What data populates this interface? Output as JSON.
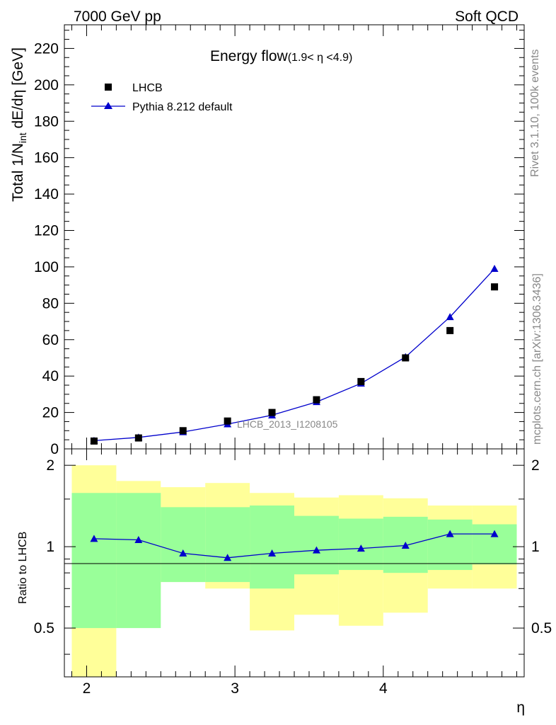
{
  "header": {
    "left": "7000 GeV pp",
    "right": "Soft QCD"
  },
  "side_text": {
    "rivet": "Rivet 3.1.10,  100k events",
    "mcplots": "mcplots.cern.ch [arXiv:1306.3436]"
  },
  "analysis_id": "LHCB_2013_I1208105",
  "chart_data": [
    {
      "type": "scatter",
      "title_main": "Energy flow",
      "title_sub": "(1.9< η <4.9)",
      "ylabel_main": "Total 1/N",
      "ylabel_sub": "int",
      "ylabel_rest": " dE/dη [GeV]",
      "xlim": [
        1.85,
        4.95
      ],
      "ylim": [
        0,
        233
      ],
      "yticks": [
        0,
        20,
        40,
        60,
        80,
        100,
        120,
        140,
        160,
        180,
        200,
        220
      ],
      "ytick_labels": [
        "0",
        "20",
        "40",
        "60",
        "80",
        "100",
        "120",
        "140",
        "160",
        "180",
        "200",
        "220"
      ],
      "legend_position": "top-left",
      "series": [
        {
          "name": "LHCB",
          "marker": "square",
          "color": "#000000",
          "x": [
            2.05,
            2.35,
            2.65,
            2.95,
            3.25,
            3.55,
            3.85,
            4.15,
            4.45,
            4.75
          ],
          "y": [
            4.3,
            6.0,
            10.0,
            15.3,
            20.0,
            27.0,
            37.0,
            50.0,
            65.0,
            89.0
          ]
        },
        {
          "name": "Pythia 8.212 default",
          "marker": "triangle",
          "color": "#0000cc",
          "x": [
            2.05,
            2.35,
            2.65,
            2.95,
            3.25,
            3.55,
            3.85,
            4.15,
            4.45,
            4.75
          ],
          "y": [
            4.5,
            6.3,
            9.3,
            13.6,
            18.5,
            25.8,
            36.0,
            50.5,
            72.5,
            99.0
          ],
          "yerr": [
            0.2,
            0.2,
            0.2,
            0.3,
            0.3,
            0.4,
            0.5,
            0.7,
            1.0,
            1.5
          ]
        }
      ]
    },
    {
      "type": "line",
      "ylabel": "Ratio to LHCB",
      "xlabel": "η",
      "xlim": [
        1.85,
        4.95
      ],
      "ylim": [
        0.33,
        2.3
      ],
      "yscale": "log",
      "xticks": [
        2,
        3,
        4
      ],
      "xtick_labels": [
        "2",
        "3",
        "4"
      ],
      "yticks": [
        0.5,
        1,
        2
      ],
      "ytick_labels": [
        "0.5",
        "1",
        "2"
      ],
      "bands": {
        "bin_edges": [
          1.9,
          2.2,
          2.5,
          2.8,
          3.1,
          3.4,
          3.7,
          4.0,
          4.3,
          4.6,
          4.9
        ],
        "green": [
          [
            0.5,
            1.58
          ],
          [
            0.5,
            1.58
          ],
          [
            0.74,
            1.4
          ],
          [
            0.74,
            1.4
          ],
          [
            0.7,
            1.42
          ],
          [
            0.79,
            1.3
          ],
          [
            0.82,
            1.27
          ],
          [
            0.8,
            1.29
          ],
          [
            0.82,
            1.26
          ],
          [
            0.86,
            1.21
          ]
        ],
        "yellow": [
          [
            0.0,
            2.0
          ],
          [
            0.7,
            1.75
          ],
          [
            0.74,
            1.66
          ],
          [
            0.7,
            1.72
          ],
          [
            0.49,
            1.58
          ],
          [
            0.56,
            1.52
          ],
          [
            0.51,
            1.55
          ],
          [
            0.57,
            1.51
          ],
          [
            0.7,
            1.42
          ],
          [
            0.7,
            1.42
          ]
        ],
        "yellow_color": "#ffff99",
        "green_color": "#99ff99"
      },
      "series": [
        {
          "name": "Pythia 8.212 default",
          "color": "#0000cc",
          "x": [
            2.05,
            2.35,
            2.65,
            2.95,
            3.25,
            3.55,
            3.85,
            4.15,
            4.45,
            4.75
          ],
          "y": [
            1.07,
            1.06,
            0.945,
            0.91,
            0.945,
            0.97,
            0.985,
            1.01,
            1.115,
            1.115
          ],
          "yerr": [
            0.02,
            0.02,
            0.015,
            0.01,
            0.01,
            0.01,
            0.01,
            0.01,
            0.015,
            0.02
          ]
        }
      ]
    }
  ]
}
